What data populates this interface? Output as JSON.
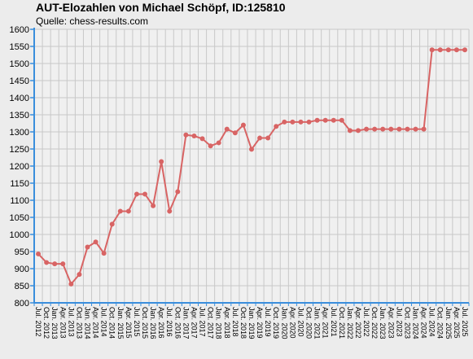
{
  "title": "AUT-Elozahlen von Michael Schöpf, ID:125810",
  "subtitle": "Quelle: chess-results.com",
  "chart_data": {
    "type": "line",
    "title": "AUT-Elozahlen von Michael Schöpf, ID:125810",
    "subtitle": "Quelle: chess-results.com",
    "xlabel": "",
    "ylabel": "",
    "ylim": [
      800,
      1600
    ],
    "y_ticks": [
      800,
      850,
      900,
      950,
      1000,
      1050,
      1100,
      1150,
      1200,
      1250,
      1300,
      1350,
      1400,
      1450,
      1500,
      1550,
      1600
    ],
    "grid": true,
    "legend": "none",
    "line_color": "#d86464",
    "categories": [
      "Jul. 2012",
      "Oct. 2012",
      "Jan. 2013",
      "Apr. 2013",
      "Jul. 2013",
      "Oct. 2013",
      "Jan. 2014",
      "Apr. 2014",
      "Jul. 2014",
      "Oct. 2014",
      "Jan. 2015",
      "Apr. 2015",
      "Jul. 2015",
      "Oct. 2015",
      "Jan. 2016",
      "Apr. 2016",
      "Jul. 2016",
      "Oct. 2016",
      "Jan. 2017",
      "Apr. 2017",
      "Jul. 2017",
      "Oct. 2017",
      "Jan. 2018",
      "Apr. 2018",
      "Jul. 2018",
      "Oct. 2018",
      "Jan. 2019",
      "Apr. 2019",
      "Jul. 2019",
      "Oct. 2019",
      "Jan. 2020",
      "Apr. 2020",
      "Jul. 2020",
      "Oct. 2020",
      "Jan. 2021",
      "Apr. 2021",
      "Jul. 2021",
      "Oct. 2021",
      "Jan. 2022",
      "Apr. 2022",
      "Jul. 2022",
      "Oct. 2022",
      "Jan. 2023",
      "Apr. 2023",
      "Jul. 2023",
      "Oct. 2023",
      "Jan. 2024",
      "Apr. 2024",
      "Jul. 2024",
      "Oct. 2024",
      "Jan. 2025",
      "Apr. 2025",
      "Jul. 2025"
    ],
    "series": [
      {
        "values": [
          943,
          918,
          914,
          914,
          855,
          883,
          963,
          978,
          945,
          1030,
          1068,
          1068,
          1118,
          1118,
          1084,
          1213,
          1068,
          1125,
          1291,
          1288,
          1280,
          1259,
          1268,
          1308,
          1297,
          1320,
          1249,
          1282,
          1282,
          1316,
          1329,
          1329,
          1329,
          1329,
          1334,
          1334,
          1334,
          1334,
          1304,
          1304,
          1308,
          1308,
          1308,
          1308,
          1308,
          1308,
          1308,
          1308,
          1540,
          1540,
          1540,
          1540,
          1540
        ]
      }
    ]
  }
}
